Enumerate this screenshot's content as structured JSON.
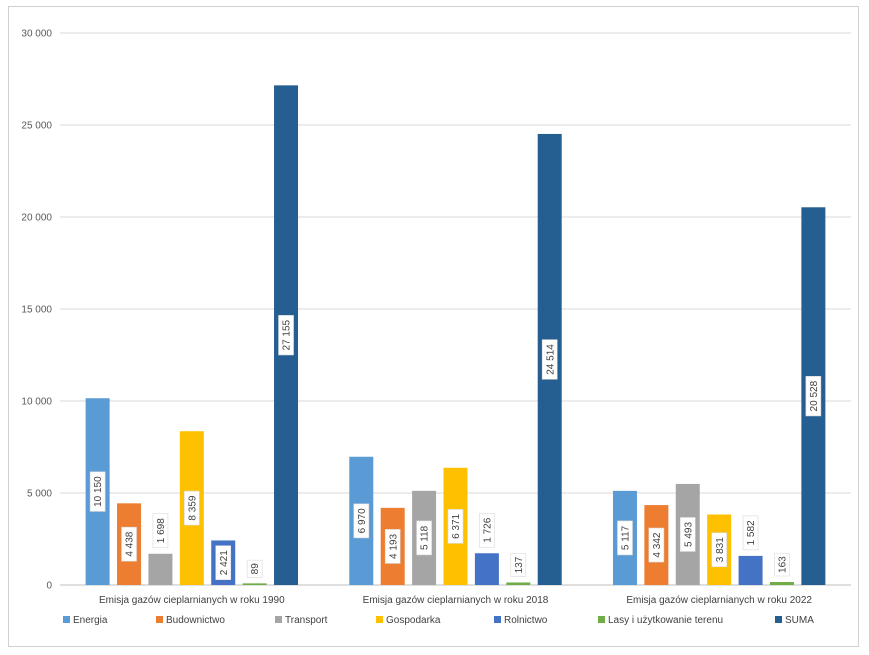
{
  "chart_data": {
    "type": "bar",
    "title": "",
    "xlabel": "",
    "ylabel": "",
    "ylim": [
      0,
      30000
    ],
    "yticks": [
      0,
      5000,
      10000,
      15000,
      20000,
      25000,
      30000
    ],
    "ytick_labels": [
      "0",
      "5 000",
      "10 000",
      "15 000",
      "20 000",
      "25 000",
      "30 000"
    ],
    "grid": true,
    "legend_position": "bottom",
    "categories": [
      "Emisja gazów cieplarnianych w roku 1990",
      "Emisja gazów cieplarnianych w roku 2018",
      "Emisja gazów cieplarnianych w roku 2022"
    ],
    "series": [
      {
        "name": "Energia",
        "color": "#5b9bd5",
        "values": [
          10150,
          6970,
          5117
        ],
        "labels": [
          "10 150",
          "6 970",
          "5 117"
        ]
      },
      {
        "name": "Budownictwo",
        "color": "#ed7d31",
        "values": [
          4438,
          4193,
          4342
        ],
        "labels": [
          "4 438",
          "4 193",
          "4 342"
        ]
      },
      {
        "name": "Transport",
        "color": "#a5a5a5",
        "values": [
          1698,
          5118,
          5493
        ],
        "labels": [
          "1 698",
          "5 118",
          "5 493"
        ]
      },
      {
        "name": "Gospodarka",
        "color": "#ffc000",
        "values": [
          8359,
          6371,
          3831
        ],
        "labels": [
          "8 359",
          "6 371",
          "3 831"
        ]
      },
      {
        "name": "Rolnictwo",
        "color": "#4472c4",
        "values": [
          2421,
          1726,
          1582
        ],
        "labels": [
          "2 421",
          "1 726",
          "1 582"
        ]
      },
      {
        "name": "Lasy i użytkowanie terenu",
        "color": "#70ad47",
        "values": [
          89,
          137,
          163
        ],
        "labels": [
          "89",
          "137",
          "163"
        ]
      },
      {
        "name": "SUMA",
        "color": "#255e91",
        "values": [
          27155,
          24514,
          20528
        ],
        "labels": [
          "27 155",
          "24 514",
          "20 528"
        ]
      }
    ]
  }
}
